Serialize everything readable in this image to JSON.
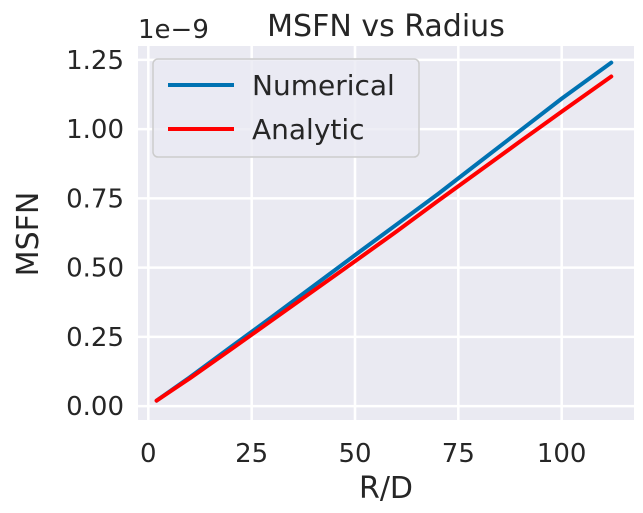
{
  "chart_data": {
    "type": "line",
    "title": "MSFN vs Radius",
    "xlabel": "R/D",
    "ylabel": "MSFN",
    "y_offset_label": "1e−9",
    "y_scale": 1e-09,
    "xlim": [
      -2.5,
      117.5
    ],
    "ylim": [
      -0.05,
      1.3
    ],
    "xticks": [
      0,
      25,
      50,
      75,
      100
    ],
    "xtick_labels": [
      "0",
      "25",
      "50",
      "75",
      "100"
    ],
    "yticks": [
      0.0,
      0.25,
      0.5,
      0.75,
      1.0,
      1.25
    ],
    "ytick_labels": [
      "0.00",
      "0.25",
      "0.50",
      "0.75",
      "1.00",
      "1.25"
    ],
    "grid": true,
    "legend_position": "top-left",
    "series": [
      {
        "name": "Numerical",
        "color": "#0072B2",
        "x": [
          2,
          10,
          20,
          30,
          40,
          50,
          60,
          70,
          80,
          90,
          100,
          112
        ],
        "y": [
          0.02,
          0.104,
          0.214,
          0.323,
          0.434,
          0.545,
          0.655,
          0.765,
          0.88,
          0.995,
          1.11,
          1.24
        ]
      },
      {
        "name": "Analytic",
        "color": "#FF0000",
        "x": [
          2,
          10,
          20,
          30,
          40,
          50,
          60,
          70,
          80,
          90,
          100,
          112
        ],
        "y": [
          0.02,
          0.1,
          0.205,
          0.311,
          0.417,
          0.523,
          0.63,
          0.74,
          0.848,
          0.956,
          1.063,
          1.19
        ]
      }
    ]
  }
}
